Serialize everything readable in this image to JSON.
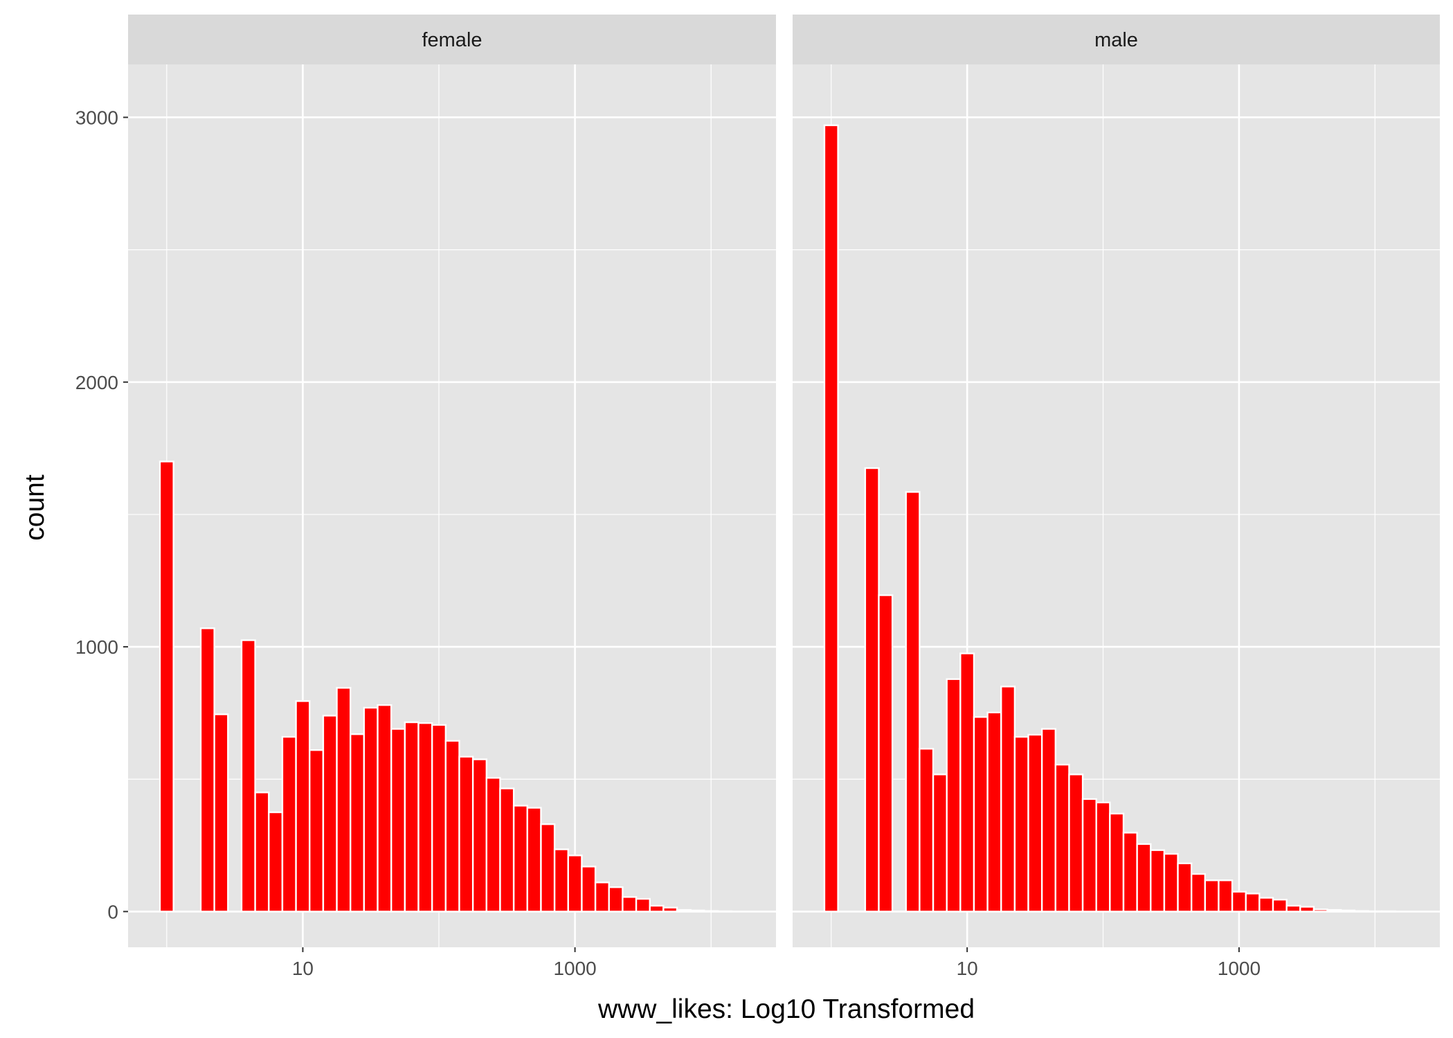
{
  "chart_data": {
    "type": "bar",
    "subtype": "faceted-histogram",
    "xlabel": "www_likes: Log10 Transformed",
    "ylabel": "count",
    "x_scale": "log10",
    "x_tick_values": [
      10,
      1000
    ],
    "x_tick_labels": [
      "10",
      "1000"
    ],
    "x_range": [
      0.52,
      30000
    ],
    "ylim": [
      -135,
      3200
    ],
    "y_ticks": [
      0,
      1000,
      2000,
      3000
    ],
    "y_tick_labels": [
      "0",
      "1000",
      "2000",
      "3000"
    ],
    "grid": true,
    "bin_width_log10": 0.1,
    "first_bin_center_log10": 0,
    "colors": {
      "fill": "#ff0000",
      "outline": "#ffffff",
      "panel": "#e5e5e5",
      "strip": "#d9d9d9",
      "grid": "#ffffff"
    },
    "panels": [
      {
        "name": "female",
        "counts": [
          1700,
          0,
          0,
          1070,
          745,
          0,
          1025,
          450,
          375,
          660,
          795,
          610,
          740,
          845,
          670,
          770,
          780,
          690,
          715,
          712,
          705,
          645,
          585,
          575,
          505,
          465,
          400,
          392,
          330,
          235,
          212,
          170,
          110,
          92,
          55,
          48,
          22,
          15,
          6,
          4,
          2,
          1
        ]
      },
      {
        "name": "male",
        "counts": [
          2970,
          0,
          0,
          1675,
          1195,
          0,
          1585,
          615,
          518,
          878,
          975,
          735,
          752,
          850,
          660,
          668,
          690,
          555,
          518,
          425,
          412,
          370,
          298,
          255,
          232,
          218,
          182,
          142,
          118,
          118,
          75,
          68,
          52,
          45,
          22,
          18,
          8,
          6,
          4,
          2,
          1,
          1
        ]
      }
    ]
  }
}
